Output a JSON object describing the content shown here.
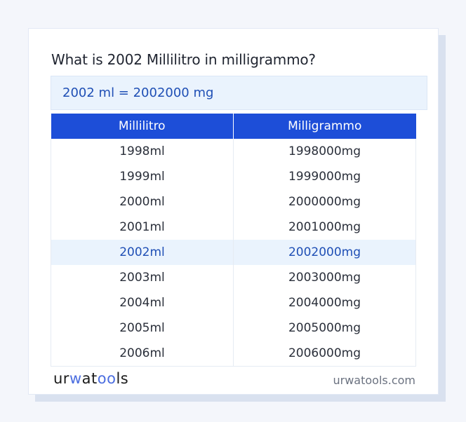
{
  "title": "What is 2002 Millilitro in milligrammo?",
  "result": "2002 ml = 2002000 mg",
  "table": {
    "headers": [
      "Millilitro",
      "Milligrammo"
    ],
    "rows": [
      [
        "1998ml",
        "1998000mg"
      ],
      [
        "1999ml",
        "1999000mg"
      ],
      [
        "2000ml",
        "2000000mg"
      ],
      [
        "2001ml",
        "2001000mg"
      ],
      [
        "2002ml",
        "2002000mg"
      ],
      [
        "2003ml",
        "2003000mg"
      ],
      [
        "2004ml",
        "2004000mg"
      ],
      [
        "2005ml",
        "2005000mg"
      ],
      [
        "2006ml",
        "2006000mg"
      ]
    ],
    "highlight_index": 4
  },
  "footer": {
    "logo": {
      "part1": "ur",
      "part2": "w",
      "part3": "at",
      "part4": "oo",
      "part5": "ls"
    },
    "site": "urwatools.com"
  },
  "colors": {
    "header_bg": "#1d4ed8",
    "highlight_bg": "#eaf3fd",
    "accent_text": "#1f4fb5"
  }
}
